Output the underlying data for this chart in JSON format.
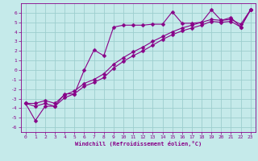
{
  "title": "",
  "xlabel": "Windchill (Refroidissement éolien,°C)",
  "background_color": "#c5eaea",
  "grid_color": "#9dcece",
  "line_color": "#880088",
  "xlim": [
    -0.5,
    23.5
  ],
  "ylim": [
    -6.5,
    7.0
  ],
  "xticks": [
    0,
    1,
    2,
    3,
    4,
    5,
    6,
    7,
    8,
    9,
    10,
    11,
    12,
    13,
    14,
    15,
    16,
    17,
    18,
    19,
    20,
    21,
    22,
    23
  ],
  "yticks": [
    -6,
    -5,
    -4,
    -3,
    -2,
    -1,
    0,
    1,
    2,
    3,
    4,
    5,
    6
  ],
  "line1_x": [
    0,
    1,
    2,
    3,
    4,
    5,
    6,
    7,
    8,
    9,
    10,
    11,
    12,
    13,
    14,
    15,
    16,
    17,
    18,
    19,
    20,
    21,
    22,
    23
  ],
  "line1_y": [
    -3.5,
    -5.3,
    -3.8,
    -3.8,
    -2.5,
    -2.5,
    0.0,
    2.1,
    1.5,
    4.5,
    4.7,
    4.7,
    4.7,
    4.8,
    4.8,
    6.1,
    4.9,
    4.9,
    5.0,
    6.3,
    5.2,
    5.5,
    4.5,
    6.3
  ],
  "line2_x": [
    0,
    1,
    2,
    3,
    4,
    5,
    6,
    7,
    8,
    9,
    10,
    11,
    12,
    13,
    14,
    15,
    16,
    17,
    18,
    19,
    20,
    21,
    22,
    23
  ],
  "line2_y": [
    -3.5,
    -3.8,
    -3.5,
    -3.8,
    -2.9,
    -2.5,
    -1.7,
    -1.3,
    -0.8,
    0.2,
    0.9,
    1.5,
    2.0,
    2.6,
    3.2,
    3.7,
    4.1,
    4.4,
    4.7,
    5.1,
    5.0,
    5.1,
    4.5,
    6.3
  ],
  "line3_x": [
    0,
    1,
    2,
    3,
    4,
    5,
    6,
    7,
    8,
    9,
    10,
    11,
    12,
    13,
    14,
    15,
    16,
    17,
    18,
    19,
    20,
    21,
    22,
    23
  ],
  "line3_y": [
    -3.5,
    -3.5,
    -3.2,
    -3.5,
    -2.6,
    -2.2,
    -1.4,
    -1.0,
    -0.4,
    0.6,
    1.3,
    1.9,
    2.4,
    3.0,
    3.5,
    4.0,
    4.4,
    4.7,
    5.0,
    5.3,
    5.2,
    5.3,
    4.8,
    6.3
  ]
}
